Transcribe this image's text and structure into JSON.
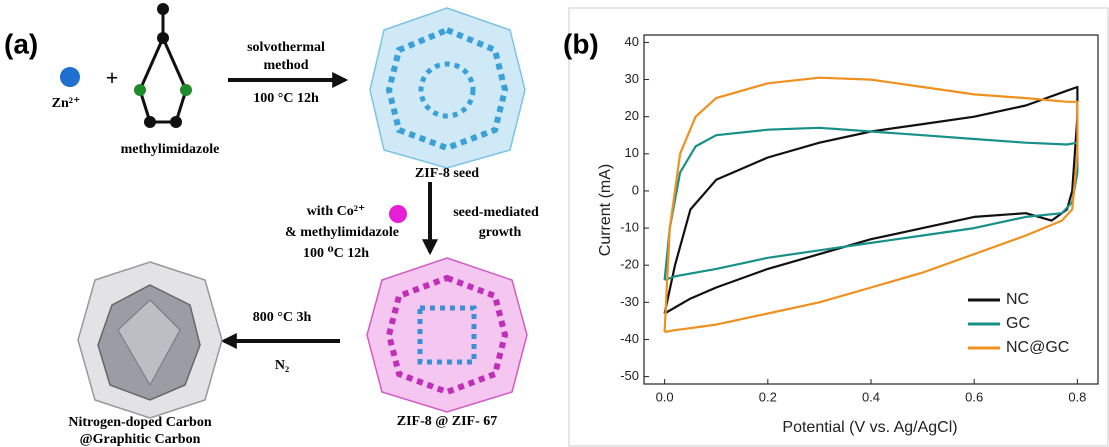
{
  "panel_a": {
    "label": "(a)",
    "zn": "Zn²⁺",
    "plus": "+",
    "molecule": "methylimidazole",
    "step1_line1": "solvothermal",
    "step1_line2": "method",
    "step1_condition": "100 °C 12h",
    "zif8_seed": "ZIF-8 seed",
    "step2_line1": "with Co²⁺",
    "step2_line2": "& methylimidazole",
    "step2_condition": "100 ⁰C 12h",
    "step2_right_line1": "seed-mediated",
    "step2_right_line2": "growth",
    "zif8_zif67": "ZIF-8 @ ZIF- 67",
    "step3_condition": "800 °C 3h",
    "step3_gas": "N₂",
    "product_line1": "Nitrogen-doped Carbon",
    "product_line2": "@Graphitic Carbon"
  },
  "panel_b": {
    "label": "(b)"
  },
  "chart_data": {
    "type": "line",
    "x_label": "Potential (V vs. Ag/AgCl)",
    "y_label": "Current (mA)",
    "xlim": [
      -0.04,
      0.84
    ],
    "ylim": [
      -52,
      42
    ],
    "xticks": [
      {
        "value": 0,
        "label": "0.0"
      },
      0.2,
      0.4,
      0.6,
      0.8
    ],
    "yticks": [
      40,
      30,
      20,
      10,
      0,
      -10,
      -20,
      -30,
      -40,
      -50
    ],
    "legend": "lower right",
    "series": [
      {
        "name": "NC",
        "color": "#111111",
        "x": [
          0,
          0.02,
          0.05,
          0.1,
          0.2,
          0.3,
          0.4,
          0.5,
          0.6,
          0.7,
          0.78,
          0.8,
          0.8,
          0.79,
          0.78,
          0.75,
          0.7,
          0.6,
          0.5,
          0.4,
          0.3,
          0.2,
          0.1,
          0.05,
          0
        ],
        "values": [
          -33,
          -20,
          -5,
          3,
          9,
          13,
          16,
          18,
          20,
          23,
          27,
          28,
          20,
          0,
          -5,
          -8,
          -6,
          -7,
          -10,
          -13,
          -17,
          -21,
          -26,
          -29,
          -33
        ]
      },
      {
        "name": "GC",
        "color": "#17908a",
        "x": [
          0,
          0.01,
          0.03,
          0.06,
          0.1,
          0.2,
          0.3,
          0.4,
          0.5,
          0.6,
          0.7,
          0.78,
          0.8,
          0.8,
          0.79,
          0.77,
          0.7,
          0.6,
          0.5,
          0.4,
          0.3,
          0.2,
          0.1,
          0.02,
          0
        ],
        "values": [
          -24,
          -10,
          5,
          12,
          15,
          16.5,
          17,
          16,
          15,
          14,
          13,
          12.5,
          13,
          5,
          -3,
          -6,
          -7,
          -10,
          -12,
          -14,
          -16,
          -18,
          -21,
          -23,
          -24
        ]
      },
      {
        "name": "NC@GC",
        "color": "#f0901e",
        "x": [
          0,
          0.01,
          0.03,
          0.06,
          0.1,
          0.2,
          0.3,
          0.4,
          0.5,
          0.6,
          0.7,
          0.78,
          0.8,
          0.8,
          0.79,
          0.77,
          0.7,
          0.6,
          0.5,
          0.4,
          0.3,
          0.2,
          0.1,
          0.02,
          0
        ],
        "values": [
          -38,
          -10,
          10,
          20,
          25,
          29,
          30.5,
          30,
          28,
          26,
          25,
          24,
          24,
          10,
          -5,
          -8,
          -12,
          -17,
          -22,
          -26,
          -30,
          -33,
          -36,
          -37.5,
          -38
        ]
      }
    ]
  }
}
